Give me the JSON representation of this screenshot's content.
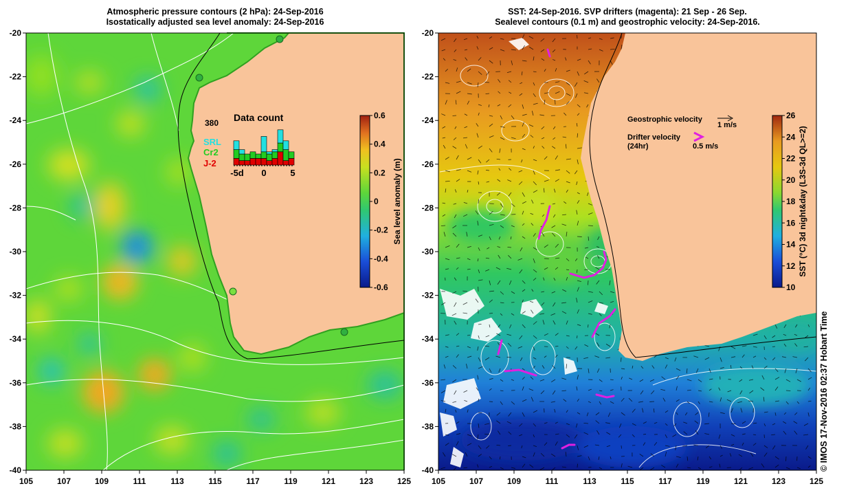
{
  "left_panel": {
    "title_lines": [
      "Atmospheric pressure contours (2 hPa): 24-Sep-2016",
      "Isostatically adjusted sea level anomaly: 24-Sep-2016"
    ],
    "lat_ticks": [
      "-20",
      "-22",
      "-24",
      "-26",
      "-28",
      "-30",
      "-32",
      "-34",
      "-36",
      "-38",
      "-40"
    ],
    "lon_ticks": [
      "105",
      "107",
      "109",
      "111",
      "113",
      "115",
      "117",
      "119",
      "121",
      "123",
      "125"
    ],
    "colorbar": {
      "title": "Sea level anomaly (m)",
      "ticks": [
        "0.6",
        "0.4",
        "0.2",
        "0",
        "-0.2",
        "-0.4",
        "-0.6"
      ],
      "range": [
        -0.6,
        0.6
      ]
    },
    "data_count": {
      "total": "380",
      "title": "Data count",
      "legend": [
        {
          "name": "SRL",
          "color": "#22e0e0"
        },
        {
          "name": "Cr2",
          "color": "#22cc22"
        },
        {
          "name": "J-2",
          "color": "#e00000"
        }
      ],
      "x_labels": [
        "-5d",
        "0",
        "5"
      ],
      "bars": [
        {
          "J-2": 3,
          "Cr2": 4,
          "SRL": 4
        },
        {
          "J-2": 2,
          "Cr2": 3,
          "SRL": 2
        },
        {
          "J-2": 2,
          "Cr2": 3,
          "SRL": 0
        },
        {
          "J-2": 3,
          "Cr2": 3,
          "SRL": 0
        },
        {
          "J-2": 3,
          "Cr2": 2,
          "SRL": 0
        },
        {
          "J-2": 3,
          "Cr2": 3,
          "SRL": 7
        },
        {
          "J-2": 2,
          "Cr2": 3,
          "SRL": 1
        },
        {
          "J-2": 3,
          "Cr2": 3,
          "SRL": 1
        },
        {
          "J-2": 6,
          "Cr2": 4,
          "SRL": 6
        },
        {
          "J-2": 2,
          "Cr2": 5,
          "SRL": 4
        },
        {
          "J-2": 3,
          "Cr2": 3,
          "SRL": 0
        }
      ]
    },
    "colors": {
      "land": "#f9c49a",
      "ocean_base": "#5ed63a",
      "contour": "#ffffff"
    }
  },
  "right_panel": {
    "title_lines": [
      "SST: 24-Sep-2016. SVP drifters (magenta): 21 Sep - 26 Sep.",
      "Sealevel contours (0.1 m) and geostrophic velocity: 24-Sep-2016."
    ],
    "lat_ticks": [
      "-20",
      "-22",
      "-24",
      "-26",
      "-28",
      "-30",
      "-32",
      "-34",
      "-36",
      "-38",
      "-40"
    ],
    "lon_ticks": [
      "105",
      "107",
      "109",
      "111",
      "113",
      "115",
      "117",
      "119",
      "121",
      "123",
      "125"
    ],
    "legend": {
      "geostrophic_label": "Geostrophic velocity",
      "geostrophic_scale": "1 m/s",
      "drifter_label": "Drifter velocity",
      "drifter_sub": "(24hr)",
      "drifter_scale": "0.5 m/s"
    },
    "colorbar": {
      "title": "SST (°C) 3d night&day (L3S-3d QL>=2)",
      "ticks": [
        "26",
        "24",
        "22",
        "20",
        "18",
        "16",
        "14",
        "12",
        "10"
      ],
      "range": [
        10,
        26
      ]
    },
    "colors": {
      "land": "#f9c49a",
      "drifter": "#e020e0"
    }
  },
  "credit": "© IMOS 17-Nov-2016 02:37 Hobart Time"
}
